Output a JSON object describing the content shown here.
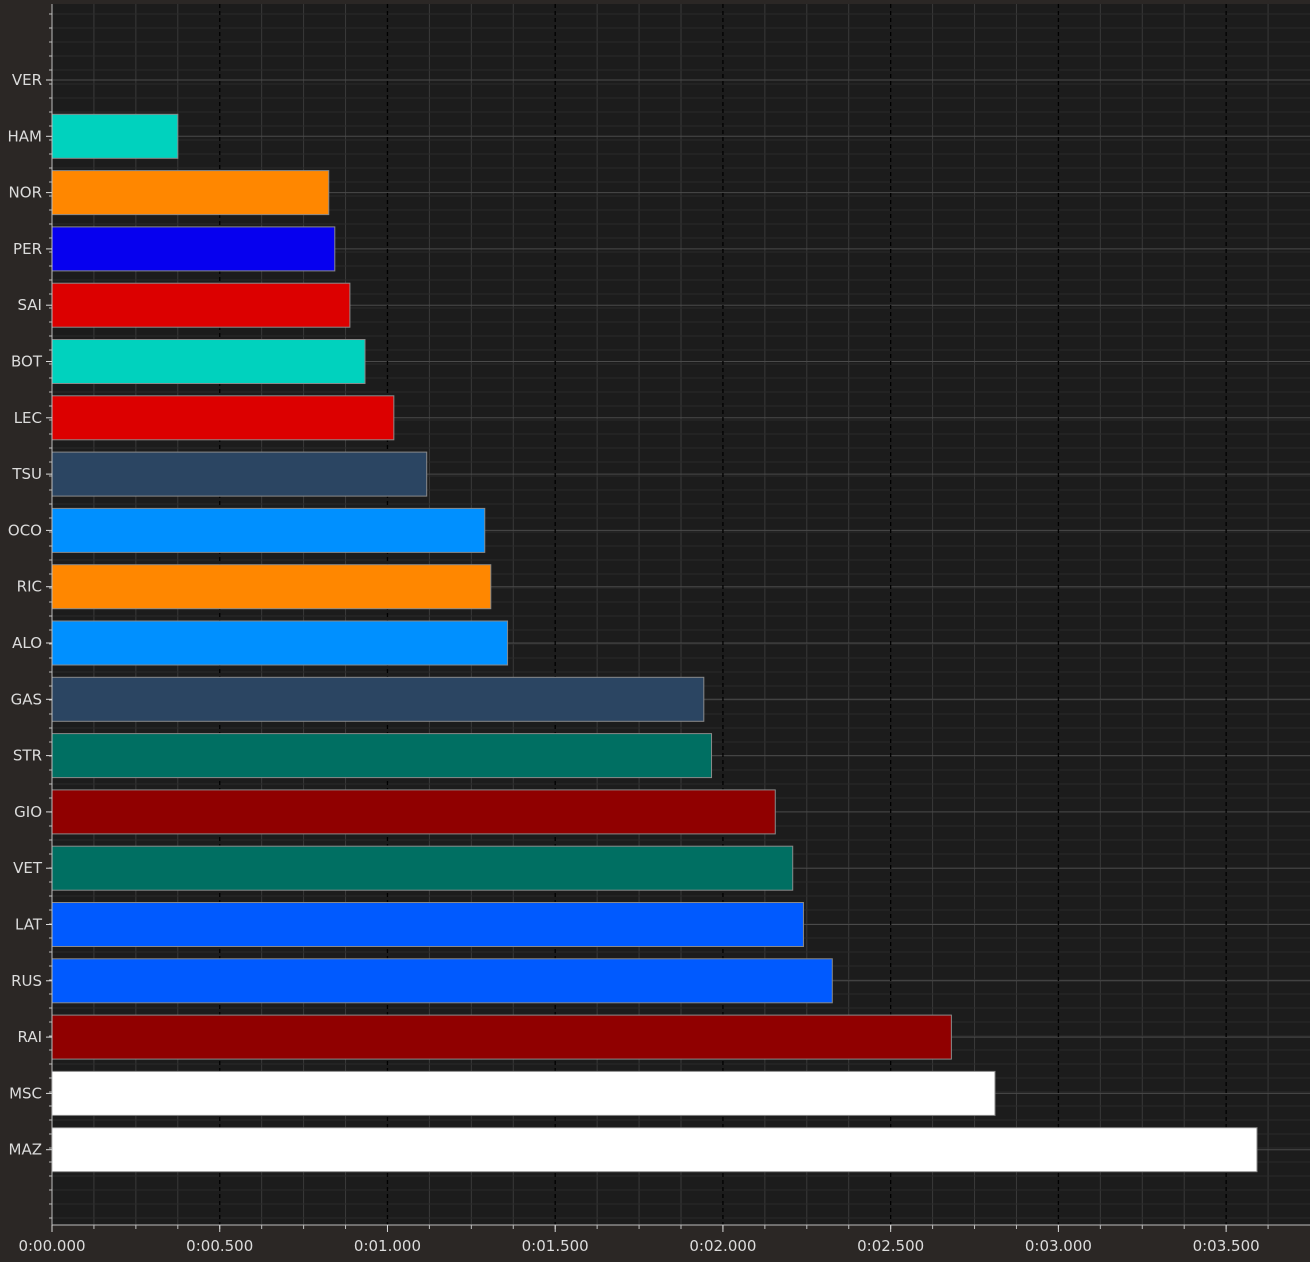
{
  "chart_data": {
    "type": "bar",
    "orientation": "horizontal",
    "title": "",
    "xlabel": "",
    "ylabel": "",
    "grid": true,
    "xlim": [
      0,
      3.75
    ],
    "x_ticks": [
      {
        "value": 0.0,
        "label": "0:00.000"
      },
      {
        "value": 0.5,
        "label": "0:00.500"
      },
      {
        "value": 1.0,
        "label": "0:01.000"
      },
      {
        "value": 1.5,
        "label": "0:01.500"
      },
      {
        "value": 2.0,
        "label": "0:02.000"
      },
      {
        "value": 2.5,
        "label": "0:02.500"
      },
      {
        "value": 3.0,
        "label": "0:03.000"
      },
      {
        "value": 3.5,
        "label": "0:03.500"
      }
    ],
    "categories": [
      "VER",
      "HAM",
      "NOR",
      "PER",
      "SAI",
      "BOT",
      "LEC",
      "TSU",
      "OCO",
      "RIC",
      "ALO",
      "GAS",
      "STR",
      "GIO",
      "VET",
      "LAT",
      "RUS",
      "RAI",
      "MSC",
      "MAZ"
    ],
    "values": [
      0.0,
      0.375,
      0.825,
      0.843,
      0.888,
      0.933,
      1.019,
      1.117,
      1.29,
      1.308,
      1.358,
      1.943,
      1.966,
      2.156,
      2.208,
      2.24,
      2.326,
      2.681,
      2.811,
      3.592
    ],
    "colors": [
      "#1e41ff",
      "#00d2be",
      "#ff8700",
      "#0600ef",
      "#dc0000",
      "#00d2be",
      "#dc0000",
      "#2b4562",
      "#0090ff",
      "#ff8700",
      "#0090ff",
      "#2b4562",
      "#006f62",
      "#900000",
      "#006f62",
      "#005aff",
      "#005aff",
      "#900000",
      "#ffffff",
      "#ffffff"
    ]
  }
}
